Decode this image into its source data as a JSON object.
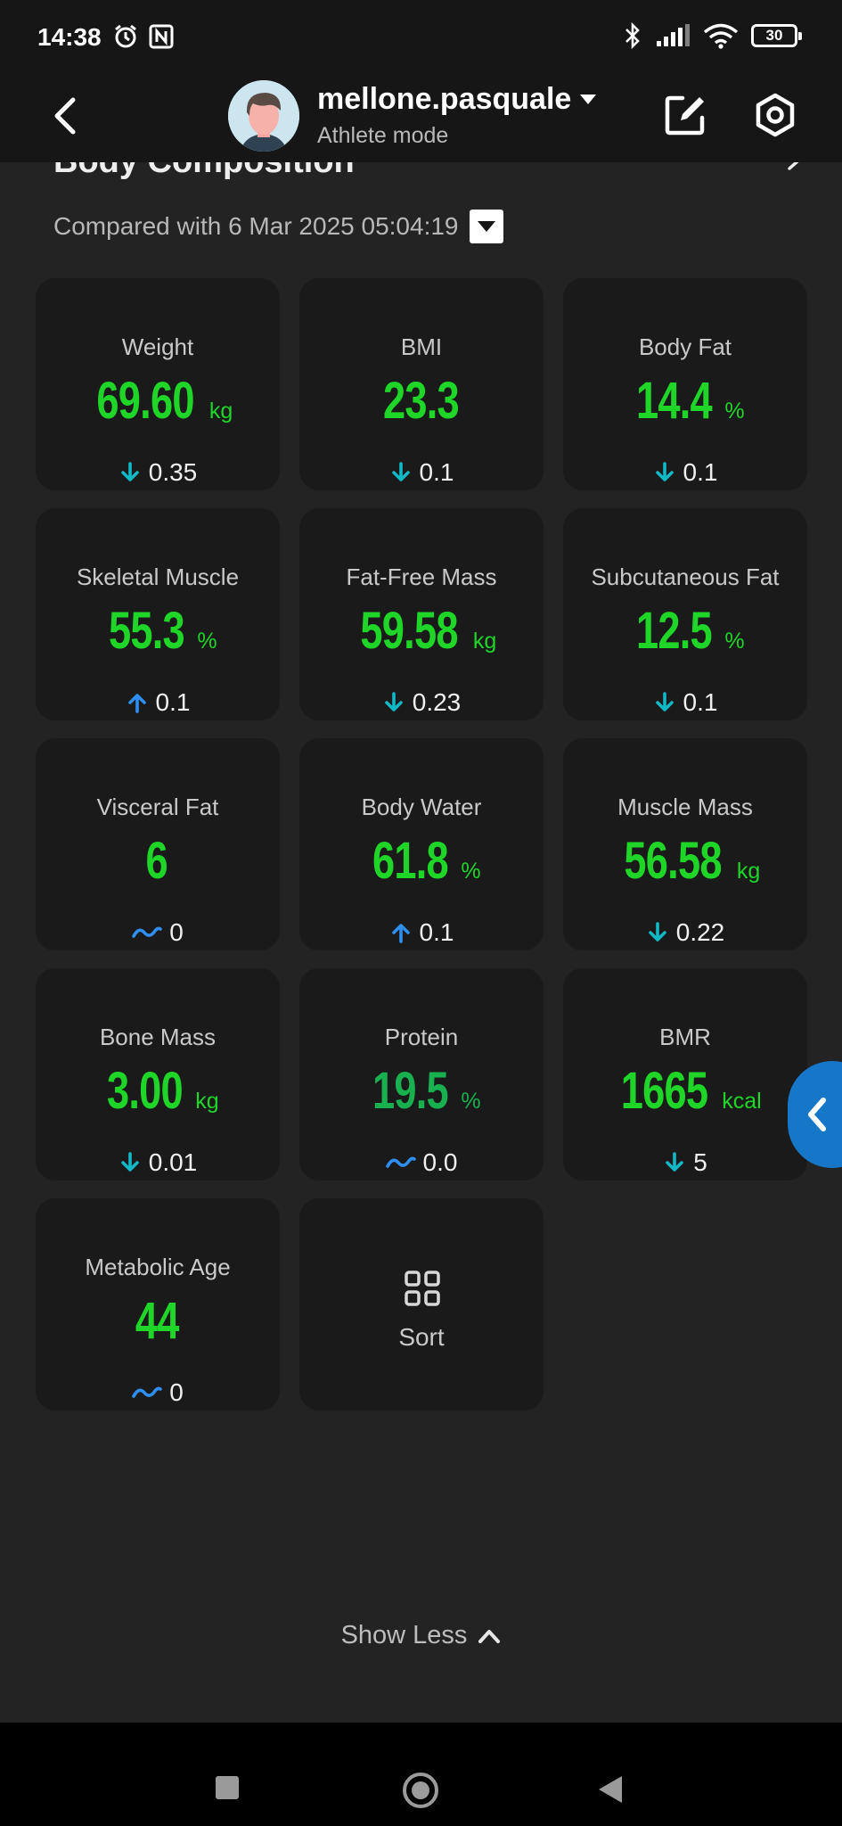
{
  "status_bar": {
    "time": "14:38",
    "battery": "30"
  },
  "header": {
    "user_name": "mellone.pasquale",
    "mode": "Athlete mode"
  },
  "section": {
    "title": "Body Composition",
    "compared_with": "Compared with 6 Mar 2025 05:04:19"
  },
  "metrics": [
    {
      "label": "Weight",
      "value": "69.60",
      "unit": "kg",
      "delta": "0.35",
      "trend": "down"
    },
    {
      "label": "BMI",
      "value": "23.3",
      "unit": "",
      "delta": "0.1",
      "trend": "down"
    },
    {
      "label": "Body Fat",
      "value": "14.4",
      "unit": "%",
      "delta": "0.1",
      "trend": "down"
    },
    {
      "label": "Skeletal Muscle",
      "value": "55.3",
      "unit": "%",
      "delta": "0.1",
      "trend": "up"
    },
    {
      "label": "Fat-Free Mass",
      "value": "59.58",
      "unit": "kg",
      "delta": "0.23",
      "trend": "down"
    },
    {
      "label": "Subcutaneous Fat",
      "value": "12.5",
      "unit": "%",
      "delta": "0.1",
      "trend": "down"
    },
    {
      "label": "Visceral Fat",
      "value": "6",
      "unit": "",
      "delta": "0",
      "trend": "flat"
    },
    {
      "label": "Body Water",
      "value": "61.8",
      "unit": "%",
      "delta": "0.1",
      "trend": "up"
    },
    {
      "label": "Muscle Mass",
      "value": "56.58",
      "unit": "kg",
      "delta": "0.22",
      "trend": "down"
    },
    {
      "label": "Bone Mass",
      "value": "3.00",
      "unit": "kg",
      "delta": "0.01",
      "trend": "down"
    },
    {
      "label": "Protein",
      "value": "19.5",
      "unit": "%",
      "delta": "0.0",
      "trend": "flat"
    },
    {
      "label": "BMR",
      "value": "1665",
      "unit": "kcal",
      "delta": "5",
      "trend": "down"
    },
    {
      "label": "Metabolic Age",
      "value": "44",
      "unit": "",
      "delta": "0",
      "trend": "flat"
    }
  ],
  "sort_label": "Sort",
  "show_less_label": "Show Less",
  "colors": {
    "value_green": "#1fd628",
    "protein_green": "#19b04f",
    "down_arrow": "#13b8c6",
    "up_arrow": "#2f8ff0",
    "flat_icon": "#2f8ff0",
    "side_tab": "#1677c9"
  }
}
